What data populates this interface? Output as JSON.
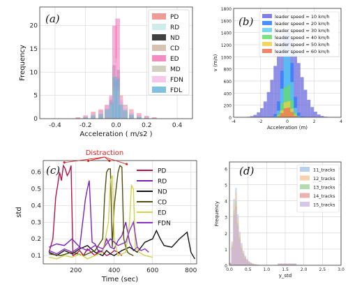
{
  "chart_data": [
    {
      "type": "bar",
      "panel": "(a)",
      "xlabel": "Acceleration ( m/s2 )",
      "ylabel": "Frequency",
      "xlim": [
        -0.5,
        0.5
      ],
      "ylim": [
        0,
        24
      ],
      "xticks": [
        "-0.4",
        "-0.2",
        "0.0",
        "0.2",
        "0.4"
      ],
      "yticks": [
        "0",
        "5",
        "10",
        "15",
        "20"
      ],
      "grid": true,
      "legend_position": "top-right",
      "bin_centers": [
        -0.25,
        -0.2,
        -0.15,
        -0.1,
        -0.06,
        -0.03,
        -0.01,
        0.01,
        0.03,
        0.06,
        0.1,
        0.15,
        0.2,
        0.25
      ],
      "series": [
        {
          "name": "PD",
          "color": "#e8827a",
          "values": [
            0.3,
            0.7,
            1.5,
            2.0,
            3.0,
            4.5,
            8.0,
            9.0,
            5.0,
            3.0,
            2.0,
            1.2,
            0.6,
            0.3
          ]
        },
        {
          "name": "RD",
          "color": "#bfe6e3",
          "values": [
            0.2,
            0.5,
            1.0,
            1.6,
            2.5,
            3.5,
            6.0,
            7.0,
            4.0,
            2.5,
            1.4,
            0.8,
            0.4,
            0.2
          ]
        },
        {
          "name": "ND",
          "color": "#111111",
          "values": [
            0.0,
            0.2,
            0.5,
            1.0,
            2.0,
            4.0,
            11.5,
            10.5,
            3.0,
            1.5,
            0.6,
            0.3,
            0.1,
            0.0
          ]
        },
        {
          "name": "CD",
          "color": "#c8b49c",
          "values": [
            0.1,
            0.3,
            0.8,
            1.3,
            2.2,
            3.5,
            7.0,
            6.5,
            3.5,
            2.0,
            1.0,
            0.5,
            0.2,
            0.1
          ]
        },
        {
          "name": "ED",
          "color": "#f06fb0",
          "values": [
            0.2,
            0.6,
            1.2,
            1.8,
            2.8,
            5.0,
            20.0,
            21.5,
            4.0,
            2.2,
            1.3,
            0.8,
            0.5,
            0.2
          ]
        },
        {
          "name": "MD",
          "color": "#c9c4b0",
          "values": [
            0.1,
            0.3,
            0.8,
            1.2,
            2.0,
            3.0,
            6.0,
            6.0,
            3.0,
            2.0,
            1.0,
            0.5,
            0.2,
            0.1
          ]
        },
        {
          "name": "FDN",
          "color": "#f6b8e6",
          "values": [
            0.2,
            0.6,
            1.2,
            1.8,
            3.0,
            4.5,
            12.0,
            13.0,
            4.5,
            2.8,
            1.6,
            0.9,
            0.5,
            0.2
          ]
        },
        {
          "name": "FDL",
          "color": "#5fb2d6",
          "values": [
            0.1,
            0.3,
            0.7,
            1.0,
            2.0,
            3.5,
            9.0,
            8.5,
            3.0,
            1.8,
            0.9,
            0.4,
            0.2,
            0.1
          ]
        }
      ]
    },
    {
      "type": "bar",
      "panel": "(b)",
      "xlabel": "Acceleration (m)",
      "ylabel": "v (m/s)",
      "xlim": [
        -4,
        4
      ],
      "ylim": [
        0,
        1800
      ],
      "xticks": [
        "-4",
        "-2",
        "0",
        "2",
        "4"
      ],
      "yticks": [
        "0",
        "200",
        "400",
        "600",
        "800",
        "1000",
        "1200",
        "1400",
        "1600",
        "1800"
      ],
      "grid": true,
      "legend_position": "top-right",
      "bin_width": 0.25,
      "series": [
        {
          "name": "leader speed = 10 km/h",
          "color": "#6a6adc",
          "center": 0,
          "sigma": 0.9,
          "peak": 1400
        },
        {
          "name": "leader speed = 20 km/h",
          "color": "#2a7bff",
          "center": 0,
          "sigma": 0.35,
          "peak": 1480
        },
        {
          "name": "leader speed = 30 km/h",
          "color": "#5fd0f0",
          "center": 0,
          "sigma": 0.3,
          "peak": 1150
        },
        {
          "name": "leader speed = 40 km/h",
          "color": "#66dd66",
          "center": 0,
          "sigma": 0.3,
          "peak": 560
        },
        {
          "name": "leader speed = 50 km/h",
          "color": "#f0d040",
          "center": 0,
          "sigma": 0.3,
          "peak": 280
        },
        {
          "name": "leader speed = 60 km/h",
          "color": "#f07050",
          "center": 0,
          "sigma": 0.3,
          "peak": 170
        }
      ]
    },
    {
      "type": "line",
      "panel": "(c)",
      "xlabel": "Time (sec)",
      "ylabel": "std",
      "xlim": [
        30,
        830
      ],
      "ylim": [
        0.05,
        0.67
      ],
      "xticks": [
        "200",
        "400",
        "600",
        "800"
      ],
      "yticks": [
        "0.1",
        "0.2",
        "0.3",
        "0.4",
        "0.5",
        "0.6"
      ],
      "grid": true,
      "legend_position": "upper-right",
      "annotation": {
        "text": "Distraction",
        "targets": [
          [
            140,
            0.65
          ],
          [
            265,
            0.66
          ],
          [
            375,
            0.66
          ],
          [
            465,
            0.64
          ]
        ]
      },
      "series": [
        {
          "name": "PD",
          "color": "#b3124a",
          "x": [
            60,
            80,
            95,
            105,
            115,
            125,
            135,
            145,
            155,
            165,
            175,
            185,
            200,
            220,
            240,
            260,
            280,
            300,
            320,
            340,
            360,
            380,
            400,
            420,
            440
          ],
          "y": [
            0.12,
            0.2,
            0.45,
            0.52,
            0.6,
            0.55,
            0.64,
            0.62,
            0.58,
            0.6,
            0.64,
            0.1,
            0.11,
            0.13,
            0.1,
            0.14,
            0.12,
            0.1,
            0.13,
            0.12,
            0.1,
            0.11,
            0.13,
            0.12,
            0.1
          ]
        },
        {
          "name": "RD",
          "color": "#7a1fb8",
          "x": [
            60,
            100,
            140,
            180,
            220,
            250,
            260,
            270,
            285,
            300,
            320,
            340,
            360,
            380,
            400,
            420,
            440,
            460,
            480,
            500,
            520
          ],
          "y": [
            0.15,
            0.17,
            0.16,
            0.2,
            0.15,
            0.44,
            0.5,
            0.55,
            0.18,
            0.17,
            0.12,
            0.13,
            0.2,
            0.15,
            0.14,
            0.19,
            0.22,
            0.3,
            0.18,
            0.13,
            0.15
          ]
        },
        {
          "name": "ND",
          "color": "#111111",
          "x": [
            60,
            100,
            140,
            180,
            220,
            260,
            300,
            340,
            360,
            380,
            400,
            440,
            480,
            520,
            560,
            600,
            620,
            640,
            660,
            700,
            740,
            780,
            800,
            820
          ],
          "y": [
            0.12,
            0.1,
            0.13,
            0.11,
            0.14,
            0.16,
            0.12,
            0.1,
            0.13,
            0.11,
            0.1,
            0.13,
            0.15,
            0.12,
            0.18,
            0.2,
            0.25,
            0.2,
            0.16,
            0.15,
            0.2,
            0.24,
            0.12,
            0.08
          ]
        },
        {
          "name": "CD",
          "color": "#4f4d0e",
          "x": [
            60,
            120,
            180,
            240,
            300,
            340,
            350,
            360,
            370,
            380,
            390,
            400,
            410,
            420,
            430,
            440,
            450,
            460,
            470,
            480,
            500
          ],
          "y": [
            0.11,
            0.1,
            0.12,
            0.1,
            0.13,
            0.2,
            0.45,
            0.6,
            0.62,
            0.62,
            0.15,
            0.4,
            0.5,
            0.6,
            0.64,
            0.63,
            0.2,
            0.15,
            0.12,
            0.11,
            0.1
          ]
        },
        {
          "name": "ED",
          "color": "#cfd34a",
          "x": [
            60,
            100,
            140,
            180,
            220,
            260,
            300,
            340,
            370,
            380,
            390,
            400,
            420,
            460,
            480,
            490,
            500,
            510,
            530,
            560,
            600
          ],
          "y": [
            0.09,
            0.08,
            0.1,
            0.09,
            0.11,
            0.08,
            0.1,
            0.12,
            0.3,
            0.55,
            0.58,
            0.2,
            0.1,
            0.12,
            0.3,
            0.52,
            0.5,
            0.15,
            0.12,
            0.1,
            0.09
          ]
        },
        {
          "name": "FDN",
          "color": "#8a2ec4",
          "x": [
            60,
            100,
            140,
            180,
            220,
            260,
            300,
            340,
            380,
            420,
            460,
            480,
            500,
            520,
            540,
            560,
            580
          ],
          "y": [
            0.13,
            0.11,
            0.14,
            0.12,
            0.15,
            0.13,
            0.16,
            0.14,
            0.2,
            0.16,
            0.18,
            0.25,
            0.3,
            0.15,
            0.13,
            0.14,
            0.12
          ]
        }
      ]
    },
    {
      "type": "bar",
      "panel": "(d)",
      "xlabel": "y_std",
      "ylabel": "Frequency",
      "xlim": [
        0,
        3
      ],
      "ylim": [
        0,
        6.4
      ],
      "xticks": [
        "0.0",
        "0.5",
        "1.0",
        "1.5",
        "2.0",
        "2.5",
        "3.0"
      ],
      "yticks": [
        "0",
        "1",
        "2",
        "3",
        "4",
        "5",
        "6"
      ],
      "grid": true,
      "legend_position": "upper-right",
      "bin_width": 0.05,
      "series": [
        {
          "name": "11_tracks",
          "color": "#a9c8ea",
          "peak_x": 0.15,
          "peak": 5.9
        },
        {
          "name": "12_tracks",
          "color": "#f7c9a0",
          "peak_x": 0.15,
          "peak": 5.5
        },
        {
          "name": "13_tracks",
          "color": "#a8d6a2",
          "peak_x": 0.15,
          "peak": 4.9
        },
        {
          "name": "14_tracks",
          "color": "#e8a3a3",
          "peak_x": 0.15,
          "peak": 4.5
        },
        {
          "name": "15_tracks",
          "color": "#cdbde6",
          "peak_x": 0.15,
          "peak": 4.2
        }
      ]
    }
  ]
}
